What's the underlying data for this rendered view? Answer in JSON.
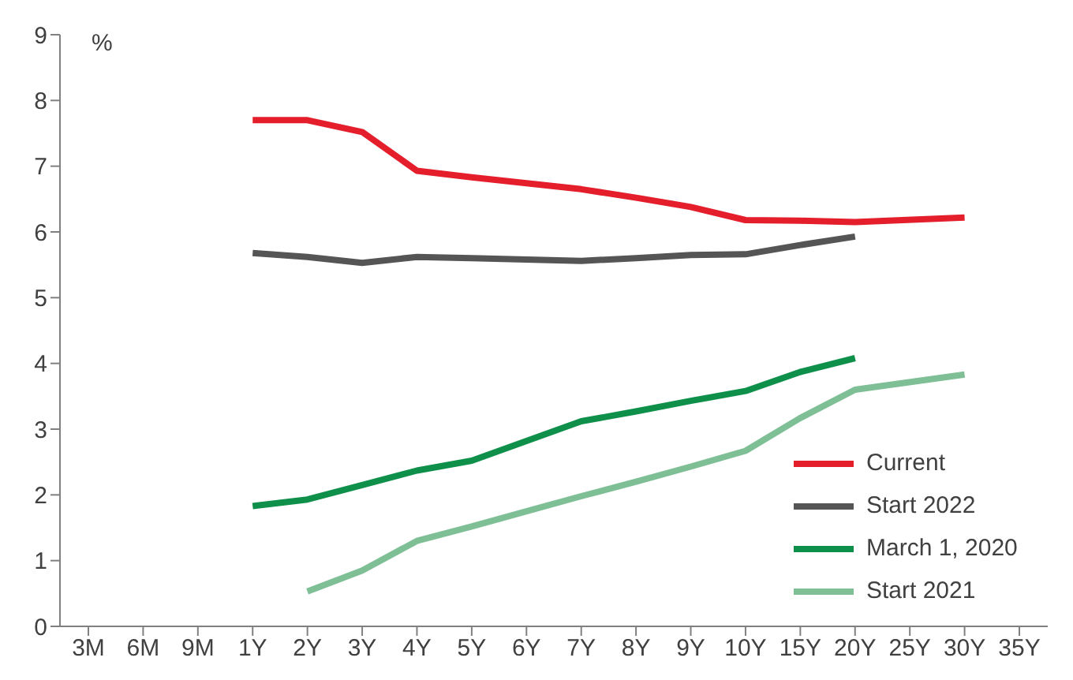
{
  "chart_data": {
    "type": "line",
    "ylabel": "%",
    "categories": [
      "3M",
      "6M",
      "9M",
      "1Y",
      "2Y",
      "3Y",
      "4Y",
      "5Y",
      "6Y",
      "7Y",
      "8Y",
      "9Y",
      "10Y",
      "15Y",
      "20Y",
      "25Y",
      "30Y",
      "35Y"
    ],
    "series": [
      {
        "name": "Current",
        "color": "#e41e2b",
        "values": [
          null,
          null,
          null,
          7.7,
          7.7,
          7.52,
          6.93,
          6.83,
          6.74,
          6.65,
          6.52,
          6.38,
          6.18,
          6.17,
          6.15,
          null,
          6.22,
          null
        ]
      },
      {
        "name": "Start 2022",
        "color": "#555555",
        "values": [
          null,
          null,
          null,
          5.68,
          5.62,
          5.53,
          5.62,
          5.6,
          5.58,
          5.56,
          5.6,
          5.65,
          5.66,
          5.8,
          5.93,
          null,
          null,
          null
        ]
      },
      {
        "name": "March 1, 2020",
        "color": "#0e8f4a",
        "values": [
          null,
          null,
          null,
          1.83,
          1.93,
          2.15,
          2.37,
          2.52,
          2.82,
          3.12,
          3.27,
          3.43,
          3.58,
          3.87,
          4.08,
          null,
          null,
          null
        ]
      },
      {
        "name": "Start 2021",
        "color": "#7fbf96",
        "values": [
          null,
          null,
          null,
          null,
          0.53,
          0.85,
          1.3,
          1.52,
          1.75,
          1.98,
          2.2,
          2.43,
          2.67,
          3.17,
          3.6,
          null,
          3.83,
          null
        ]
      }
    ],
    "ylim": [
      0,
      9
    ],
    "yticks": [
      0,
      1,
      2,
      3,
      4,
      5,
      6,
      7,
      8,
      9
    ],
    "grid": false,
    "legend": "bottom right",
    "marker": "none",
    "line_style": "solid"
  }
}
